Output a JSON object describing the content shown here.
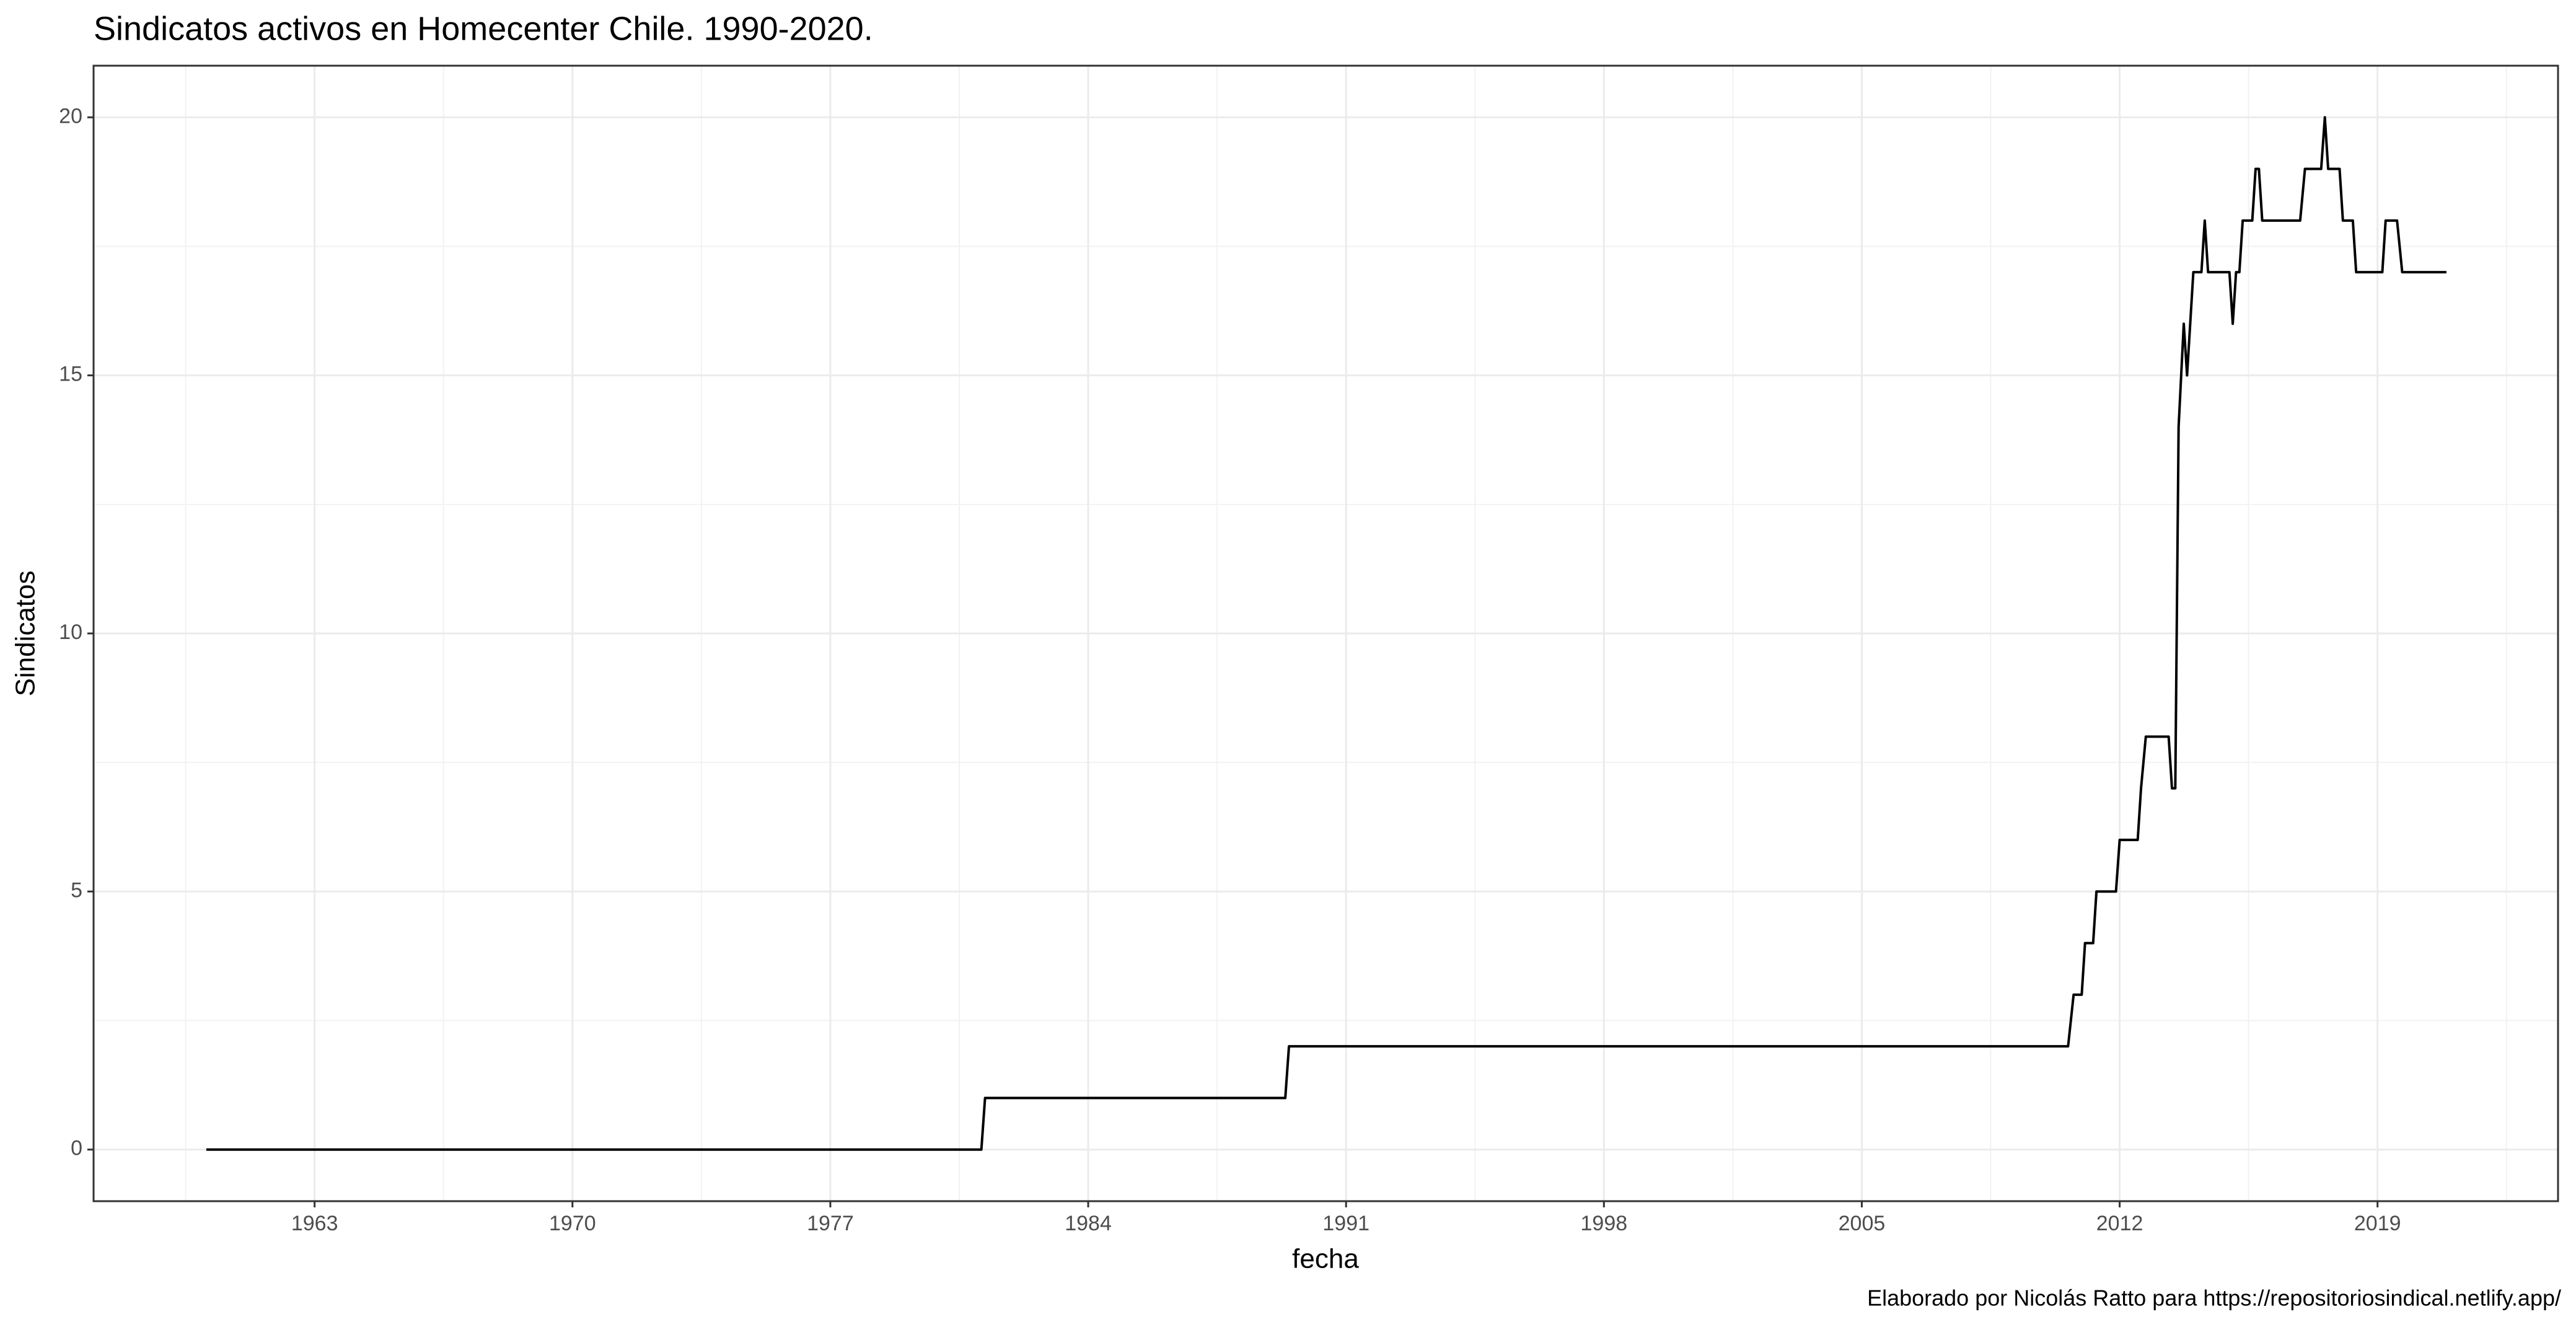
{
  "chart_data": {
    "type": "line",
    "title": "Sindicatos activos en Homecenter Chile. 1990-2020.",
    "x_label": "fecha",
    "y_label": "Sindicatos",
    "caption": "Elaborado por Nicolás Ratto para https://repositoriosindical.netlify.app/",
    "x": [
      1960.06,
      1981.1,
      1981.2,
      1989.35,
      1989.45,
      2010.6,
      2010.75,
      2010.97,
      2011.06,
      2011.28,
      2011.37,
      2011.9,
      2012.0,
      2012.49,
      2012.58,
      2012.71,
      2013.33,
      2013.42,
      2013.51,
      2013.6,
      2013.74,
      2013.83,
      2014.0,
      2014.22,
      2014.31,
      2014.4,
      2014.98,
      2015.07,
      2015.16,
      2015.25,
      2015.34,
      2015.6,
      2015.69,
      2015.78,
      2015.87,
      2016.9,
      2017.03,
      2017.47,
      2017.57,
      2017.66,
      2017.97,
      2018.06,
      2018.33,
      2018.42,
      2019.13,
      2019.22,
      2019.53,
      2019.67,
      2020.87
    ],
    "values": [
      0,
      0,
      1,
      1,
      2,
      2,
      3,
      3,
      4,
      4,
      5,
      5,
      6,
      6,
      7,
      8,
      8,
      7,
      7,
      14,
      16,
      15,
      17,
      17,
      18,
      17,
      17,
      16,
      17,
      17,
      18,
      18,
      19,
      19,
      18,
      18,
      19,
      19,
      20,
      19,
      19,
      18,
      18,
      17,
      17,
      18,
      18,
      17,
      17
    ],
    "color": "#000000",
    "xlim": [
      1957.0,
      2023.9
    ],
    "xticks": [
      1963,
      1970,
      1977,
      1984,
      1991,
      1998,
      2005,
      2012,
      2019
    ],
    "ylim": [
      -1.0,
      21.0
    ],
    "yticks": [
      0,
      5,
      10,
      15,
      20
    ],
    "grid": true
  }
}
